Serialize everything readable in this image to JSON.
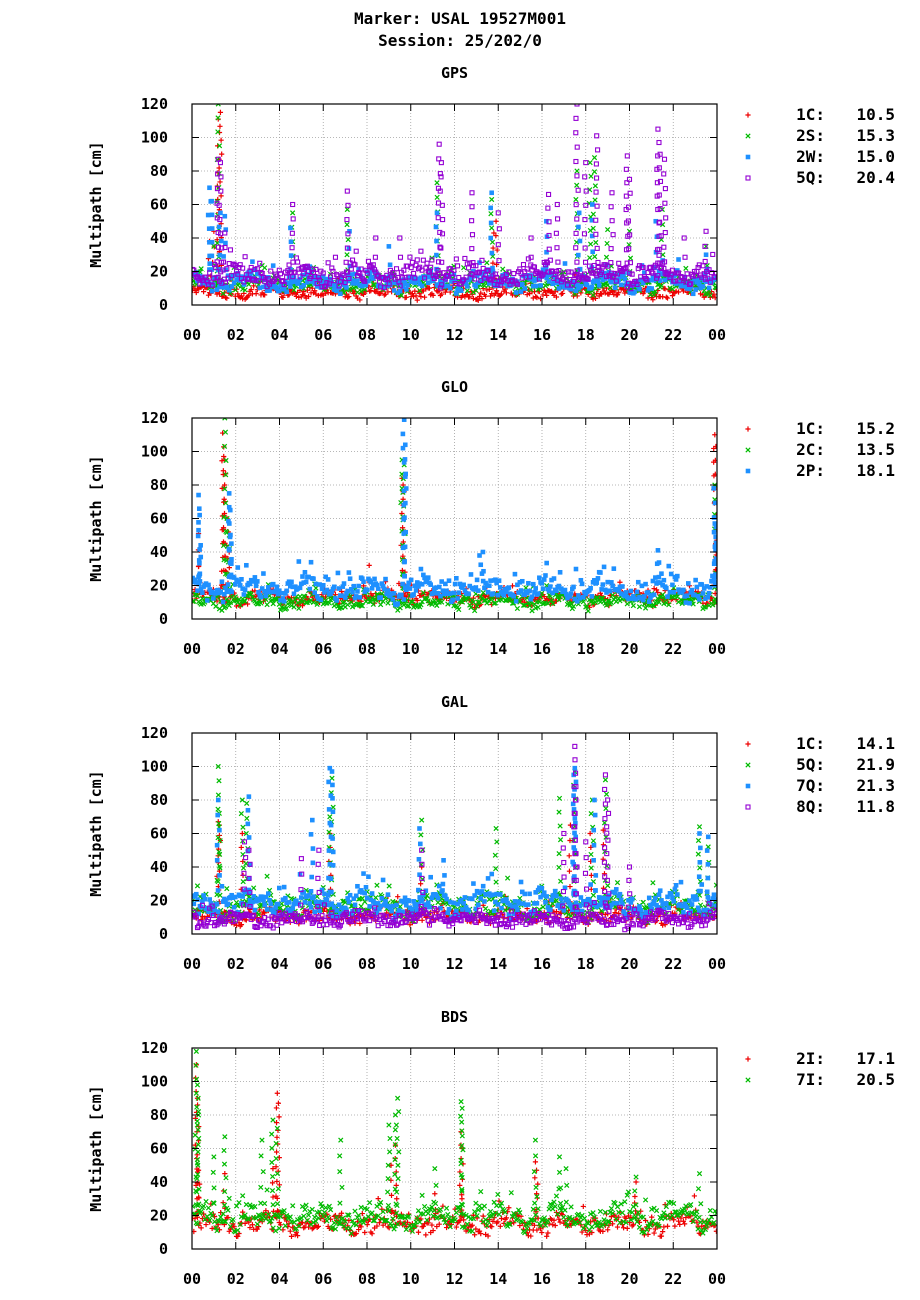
{
  "header": {
    "marker_line": "Marker: USAL 19527M001",
    "session_line": "Session: 25/202/0"
  },
  "colors": {
    "red": "#ee0000",
    "green": "#00bb00",
    "blue": "#1e90ff",
    "purple": "#9400d3",
    "grid": "#a0a0a0"
  },
  "chart_data": [
    {
      "type": "scatter",
      "title": "GPS",
      "ylabel": "Multipath [cm]",
      "ylim": [
        0,
        120
      ],
      "yticks": [
        "0",
        "20",
        "40",
        "60",
        "80",
        "100",
        "120"
      ],
      "xlim": [
        0,
        24
      ],
      "xticks": [
        "00",
        "02",
        "04",
        "06",
        "08",
        "10",
        "12",
        "14",
        "16",
        "18",
        "20",
        "22",
        "00"
      ],
      "grid": true,
      "legend_position": "right",
      "series": [
        {
          "name": "1C:",
          "rms": "10.5",
          "marker": "plus",
          "color": "#ee0000",
          "base": 7,
          "amp": 4,
          "spikes": [
            [
              0.8,
              38
            ],
            [
              1.0,
              44
            ],
            [
              1.2,
              111
            ],
            [
              1.3,
              115
            ],
            [
              4.5,
              12
            ],
            [
              13.8,
              43
            ],
            [
              13.9,
              50
            ],
            [
              17.5,
              18
            ]
          ]
        },
        {
          "name": "2S:",
          "rms": "15.3",
          "marker": "cross",
          "color": "#00bb00",
          "base": 12,
          "amp": 6,
          "spikes": [
            [
              1.0,
              35
            ],
            [
              1.2,
              120
            ],
            [
              4.6,
              55
            ],
            [
              7.1,
              57
            ],
            [
              11.2,
              73
            ],
            [
              13.7,
              63
            ],
            [
              17.6,
              80
            ],
            [
              18.2,
              85
            ],
            [
              18.4,
              88
            ],
            [
              19.0,
              45
            ],
            [
              20.0,
              44
            ],
            [
              21.5,
              57
            ],
            [
              23.5,
              35
            ]
          ]
        },
        {
          "name": "2W:",
          "rms": "15.0",
          "marker": "square",
          "color": "#1e90ff",
          "base": 13,
          "amp": 6,
          "spikes": [
            [
              0.8,
              70
            ],
            [
              0.9,
              62
            ],
            [
              1.3,
              55
            ],
            [
              1.5,
              53
            ],
            [
              4.5,
              46
            ],
            [
              7.2,
              44
            ],
            [
              9.0,
              35
            ],
            [
              11.2,
              55
            ],
            [
              13.7,
              67
            ],
            [
              16.2,
              50
            ],
            [
              17.7,
              55
            ],
            [
              18.3,
              60
            ],
            [
              21.2,
              50
            ],
            [
              23.5,
              30
            ]
          ]
        },
        {
          "name": "5Q:",
          "rms": "20.4",
          "marker": "opensquare",
          "color": "#9400d3",
          "base": 17,
          "amp": 7,
          "spikes": [
            [
              1.2,
              87
            ],
            [
              1.3,
              85
            ],
            [
              1.5,
              43
            ],
            [
              4.6,
              60
            ],
            [
              7.1,
              68
            ],
            [
              8.4,
              40
            ],
            [
              9.5,
              40
            ],
            [
              11.3,
              96
            ],
            [
              11.4,
              85
            ],
            [
              12.8,
              67
            ],
            [
              14.0,
              55
            ],
            [
              15.5,
              40
            ],
            [
              16.3,
              66
            ],
            [
              16.7,
              60
            ],
            [
              17.6,
              120
            ],
            [
              18.0,
              85
            ],
            [
              18.5,
              101
            ],
            [
              19.2,
              67
            ],
            [
              19.9,
              89
            ],
            [
              20.0,
              75
            ],
            [
              21.3,
              105
            ],
            [
              21.4,
              90
            ],
            [
              21.6,
              87
            ],
            [
              22.5,
              40
            ],
            [
              23.5,
              44
            ]
          ]
        }
      ]
    },
    {
      "type": "scatter",
      "title": "GLO",
      "ylabel": "Multipath [cm]",
      "ylim": [
        0,
        120
      ],
      "yticks": [
        "0",
        "20",
        "40",
        "60",
        "80",
        "100",
        "120"
      ],
      "xlim": [
        0,
        24
      ],
      "xticks": [
        "00",
        "02",
        "04",
        "06",
        "08",
        "10",
        "12",
        "14",
        "16",
        "18",
        "20",
        "22",
        "00"
      ],
      "grid": true,
      "legend_position": "right",
      "series": [
        {
          "name": "1C:",
          "rms": "15.2",
          "marker": "plus",
          "color": "#ee0000",
          "base": 12,
          "amp": 5,
          "spikes": [
            [
              0.3,
              51
            ],
            [
              0.35,
              41
            ],
            [
              1.4,
              111
            ],
            [
              1.45,
              97
            ],
            [
              1.5,
              95
            ],
            [
              1.6,
              60
            ],
            [
              1.7,
              40
            ],
            [
              8.1,
              32
            ],
            [
              9.6,
              84
            ],
            [
              9.7,
              76
            ],
            [
              9.65,
              80
            ],
            [
              23.9,
              110
            ],
            [
              23.95,
              103
            ],
            [
              24.0,
              47
            ]
          ]
        },
        {
          "name": "2C:",
          "rms": "13.5",
          "marker": "cross",
          "color": "#00bb00",
          "base": 10,
          "amp": 5,
          "spikes": [
            [
              1.5,
              120
            ],
            [
              1.6,
              60
            ],
            [
              1.7,
              50
            ],
            [
              9.6,
              95
            ],
            [
              9.7,
              92
            ],
            [
              23.9,
              80
            ],
            [
              24.0,
              43
            ]
          ]
        },
        {
          "name": "2P:",
          "rms": "18.1",
          "marker": "square",
          "color": "#1e90ff",
          "base": 17,
          "amp": 8,
          "spikes": [
            [
              0.3,
              74
            ],
            [
              0.35,
              62
            ],
            [
              0.4,
              37
            ],
            [
              1.7,
              75
            ],
            [
              1.75,
              65
            ],
            [
              1.8,
              45
            ],
            [
              9.7,
              119
            ],
            [
              9.75,
              104
            ],
            [
              13.3,
              40
            ],
            [
              21.3,
              41
            ],
            [
              23.85,
              78
            ],
            [
              23.9,
              57
            ],
            [
              23.95,
              55
            ]
          ]
        }
      ]
    },
    {
      "type": "scatter",
      "title": "GAL",
      "ylabel": "Multipath [cm]",
      "ylim": [
        0,
        120
      ],
      "yticks": [
        "0",
        "20",
        "40",
        "60",
        "80",
        "100",
        "120"
      ],
      "xlim": [
        0,
        24
      ],
      "xticks": [
        "00",
        "02",
        "04",
        "06",
        "08",
        "10",
        "12",
        "14",
        "16",
        "18",
        "20",
        "22",
        "00"
      ],
      "grid": true,
      "legend_position": "right",
      "series": [
        {
          "name": "1C:",
          "rms": "14.1",
          "marker": "plus",
          "color": "#ee0000",
          "base": 10,
          "amp": 5,
          "spikes": [
            [
              1.2,
              67
            ],
            [
              1.25,
              65
            ],
            [
              2.3,
              60
            ],
            [
              6.3,
              60
            ],
            [
              10.5,
              40
            ],
            [
              17.3,
              65
            ],
            [
              18.2,
              60
            ],
            [
              18.8,
              62
            ]
          ]
        },
        {
          "name": "5Q:",
          "rms": "21.9",
          "marker": "cross",
          "color": "#00bb00",
          "base": 15,
          "amp": 8,
          "spikes": [
            [
              1.2,
              100
            ],
            [
              1.25,
              72
            ],
            [
              2.3,
              80
            ],
            [
              2.5,
              78
            ],
            [
              6.4,
              93
            ],
            [
              6.3,
              70
            ],
            [
              10.5,
              68
            ],
            [
              13.9,
              63
            ],
            [
              16.8,
              81
            ],
            [
              17.5,
              97
            ],
            [
              18.3,
              80
            ],
            [
              18.9,
              92
            ],
            [
              23.2,
              64
            ],
            [
              23.6,
              52
            ]
          ]
        },
        {
          "name": "7Q:",
          "rms": "21.3",
          "marker": "square",
          "color": "#1e90ff",
          "base": 17,
          "amp": 8,
          "spikes": [
            [
              1.2,
              80
            ],
            [
              2.6,
              82
            ],
            [
              5.5,
              68
            ],
            [
              6.3,
              99
            ],
            [
              6.4,
              97
            ],
            [
              10.4,
              63
            ],
            [
              11.5,
              44
            ],
            [
              17.5,
              99
            ],
            [
              17.45,
              95
            ],
            [
              18.4,
              80
            ],
            [
              23.2,
              60
            ],
            [
              23.6,
              58
            ]
          ]
        },
        {
          "name": "8Q:",
          "rms": "11.8",
          "marker": "opensquare",
          "color": "#9400d3",
          "base": 8,
          "amp": 5,
          "spikes": [
            [
              2.4,
              55
            ],
            [
              2.6,
              50
            ],
            [
              5.0,
              45
            ],
            [
              5.8,
              50
            ],
            [
              10.5,
              50
            ],
            [
              17.0,
              60
            ],
            [
              17.5,
              112
            ],
            [
              17.55,
              88
            ],
            [
              18.0,
              55
            ],
            [
              18.9,
              95
            ],
            [
              19.0,
              80
            ],
            [
              20.0,
              40
            ]
          ]
        }
      ]
    },
    {
      "type": "scatter",
      "title": "BDS",
      "ylabel": "Multipath [cm]",
      "ylim": [
        0,
        120
      ],
      "yticks": [
        "0",
        "20",
        "40",
        "60",
        "80",
        "100",
        "120"
      ],
      "xlim": [
        0,
        24
      ],
      "xticks": [
        "00",
        "02",
        "04",
        "06",
        "08",
        "10",
        "12",
        "14",
        "16",
        "18",
        "20",
        "22",
        "00"
      ],
      "grid": true,
      "legend_position": "right",
      "series": [
        {
          "name": "2I:",
          "rms": "17.1",
          "marker": "plus",
          "color": "#ee0000",
          "base": 14,
          "amp": 7,
          "spikes": [
            [
              0.2,
              110
            ],
            [
              0.25,
              90
            ],
            [
              0.3,
              47
            ],
            [
              1.5,
              45
            ],
            [
              3.7,
              48
            ],
            [
              3.9,
              93
            ],
            [
              3.95,
              87
            ],
            [
              9.1,
              50
            ],
            [
              9.3,
              62
            ],
            [
              11.1,
              33
            ],
            [
              12.3,
              70
            ],
            [
              12.35,
              60
            ],
            [
              15.7,
              52
            ],
            [
              15.75,
              47
            ],
            [
              20.3,
              40
            ]
          ]
        },
        {
          "name": "7I:",
          "rms": "20.5",
          "marker": "cross",
          "color": "#00bb00",
          "base": 18,
          "amp": 8,
          "spikes": [
            [
              0.2,
              118
            ],
            [
              0.25,
              98
            ],
            [
              0.3,
              80
            ],
            [
              1.0,
              55
            ],
            [
              1.5,
              67
            ],
            [
              3.2,
              65
            ],
            [
              3.7,
              77
            ],
            [
              3.9,
              72
            ],
            [
              6.8,
              65
            ],
            [
              9.0,
              74
            ],
            [
              9.4,
              90
            ],
            [
              9.3,
              80
            ],
            [
              11.1,
              48
            ],
            [
              12.3,
              88
            ],
            [
              12.35,
              84
            ],
            [
              15.7,
              65
            ],
            [
              16.8,
              55
            ],
            [
              17.1,
              48
            ],
            [
              20.3,
              43
            ],
            [
              23.2,
              45
            ]
          ]
        }
      ]
    }
  ]
}
